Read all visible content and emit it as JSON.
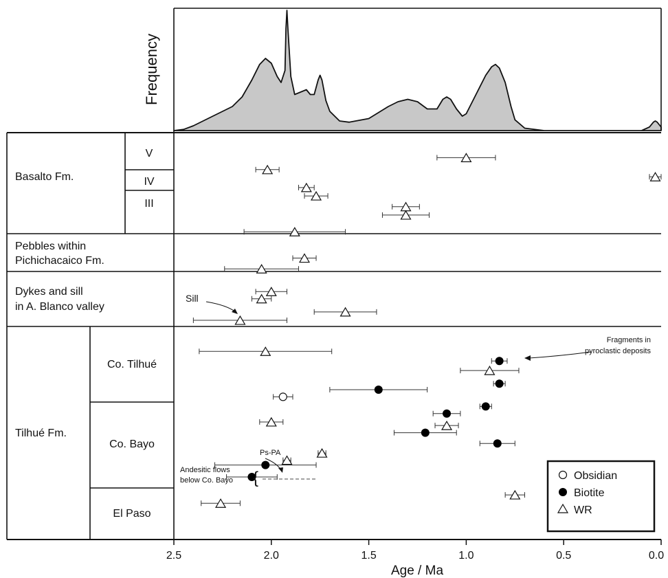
{
  "chart_data": {
    "type": "scatter",
    "xlabel": "Age / Ma",
    "ylabel": "Frequency",
    "xlim": [
      2.5,
      0.0
    ],
    "x_reversed": true,
    "x_ticks": [
      "2.5",
      "2.0",
      "1.5",
      "1.0",
      "0.5",
      "0.0"
    ],
    "x_tick_values": [
      2.5,
      2.0,
      1.5,
      1.0,
      0.5,
      0.0
    ],
    "frequency_curve": {
      "description": "probability density of ages",
      "x": [
        2.5,
        2.45,
        2.4,
        2.3,
        2.2,
        2.15,
        2.1,
        2.06,
        2.03,
        2.0,
        1.97,
        1.95,
        1.93,
        1.925,
        1.92,
        1.915,
        1.9,
        1.88,
        1.85,
        1.82,
        1.8,
        1.78,
        1.76,
        1.75,
        1.74,
        1.72,
        1.7,
        1.65,
        1.6,
        1.5,
        1.4,
        1.35,
        1.3,
        1.25,
        1.2,
        1.15,
        1.12,
        1.1,
        1.08,
        1.05,
        1.02,
        1.0,
        0.95,
        0.9,
        0.87,
        0.85,
        0.83,
        0.8,
        0.77,
        0.75,
        0.7,
        0.6,
        0.5,
        0.3,
        0.1,
        0.06,
        0.04,
        0.03,
        0.02,
        0.0
      ],
      "y": [
        0,
        0.01,
        0.04,
        0.12,
        0.2,
        0.28,
        0.42,
        0.55,
        0.6,
        0.56,
        0.45,
        0.4,
        0.5,
        0.85,
        1.0,
        0.85,
        0.45,
        0.3,
        0.32,
        0.34,
        0.3,
        0.3,
        0.42,
        0.46,
        0.42,
        0.25,
        0.16,
        0.08,
        0.07,
        0.1,
        0.2,
        0.24,
        0.26,
        0.24,
        0.18,
        0.18,
        0.26,
        0.28,
        0.26,
        0.18,
        0.12,
        0.14,
        0.3,
        0.46,
        0.53,
        0.55,
        0.52,
        0.4,
        0.2,
        0.09,
        0.02,
        0,
        0,
        0,
        0,
        0.03,
        0.07,
        0.08,
        0.07,
        0.03
      ]
    },
    "groups": [
      {
        "label": "Basalto Fm.",
        "subgroups": [
          "V",
          "IV",
          "III"
        ]
      },
      {
        "label_lines": [
          "Pebbles within",
          "Pichichacaico Fm."
        ]
      },
      {
        "label_lines": [
          "Dykes and sill",
          "in A. Blanco valley"
        ]
      },
      {
        "label": "Tilhué Fm.",
        "subgroups": [
          "Co. Tilhué",
          "Co. Bayo",
          "El Paso"
        ]
      }
    ],
    "series": [
      {
        "name": "Obsidian",
        "points": [
          {
            "row": 21,
            "age": 1.94,
            "err": 0.05
          }
        ]
      },
      {
        "name": "Biotite",
        "points": [
          {
            "row": 18,
            "age": 0.83,
            "err": 0.04
          },
          {
            "row": 19.9,
            "age": 0.83,
            "err": 0.03
          },
          {
            "row": 20.4,
            "age": 1.45,
            "err": 0.25
          },
          {
            "row": 21.8,
            "age": 0.9,
            "err": 0.03
          },
          {
            "row": 22.4,
            "age": 1.1,
            "err": 0.07
          },
          {
            "row": 24.0,
            "age": 1.21,
            "err": 0.16
          },
          {
            "row": 24.9,
            "age": 0.84,
            "err": 0.09
          },
          {
            "row": 26.7,
            "age": 2.03,
            "err": 0.26
          },
          {
            "row": 27.7,
            "age": 2.1,
            "err": 0.13
          }
        ]
      },
      {
        "name": "WR",
        "points": [
          {
            "row": 1,
            "age": 1.0,
            "err": 0.15
          },
          {
            "row": 2,
            "age": 2.02,
            "err": 0.06
          },
          {
            "row": 2.6,
            "age": 0.03,
            "err": 0.03
          },
          {
            "row": 3.5,
            "age": 1.82,
            "err": 0.04
          },
          {
            "row": 4.2,
            "age": 1.77,
            "err": 0.06
          },
          {
            "row": 5.1,
            "age": 1.31,
            "err": 0.07
          },
          {
            "row": 5.8,
            "age": 1.31,
            "err": 0.12
          },
          {
            "row": 7.2,
            "age": 1.88,
            "err": 0.26
          },
          {
            "row": 9.4,
            "age": 1.83,
            "err": 0.06
          },
          {
            "row": 10.3,
            "age": 2.05,
            "err": 0.19
          },
          {
            "row": 12.2,
            "age": 2.0,
            "err": 0.08
          },
          {
            "row": 12.8,
            "age": 2.05,
            "err": 0.05
          },
          {
            "row": 13.9,
            "age": 1.62,
            "err": 0.16
          },
          {
            "row": 14.6,
            "age": 2.16,
            "err": 0.24
          },
          {
            "row": 17.2,
            "age": 2.03,
            "err": 0.34
          },
          {
            "row": 18.8,
            "age": 0.88,
            "err": 0.15
          },
          {
            "row": 23.1,
            "age": 2.0,
            "err": 0.06
          },
          {
            "row": 23.4,
            "age": 1.1,
            "err": 0.06
          },
          {
            "row": 25.7,
            "age": 1.74,
            "err": 0.02
          },
          {
            "row": 26.3,
            "age": 1.92,
            "err": 0.02
          },
          {
            "row": 29.2,
            "age": 0.75,
            "err": 0.05
          },
          {
            "row": 29.9,
            "age": 2.26,
            "err": 0.1
          }
        ]
      }
    ],
    "annotations": {
      "sill": "Sill",
      "fragments": [
        "Fragments in",
        "pyroclastic deposits"
      ],
      "pspa": "Ps-PA",
      "andesitic": [
        "Andesitic flows",
        "below Co. Bayo"
      ]
    },
    "legend": {
      "position": "bottom-right",
      "entries": [
        "Obsidian",
        "Biotite",
        "WR"
      ]
    }
  }
}
